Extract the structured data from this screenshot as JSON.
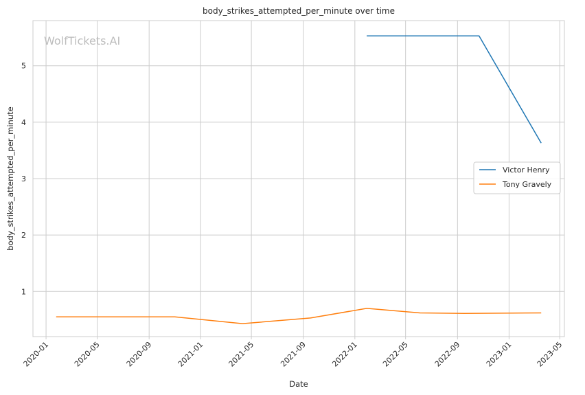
{
  "chart_data": {
    "type": "line",
    "title": "body_strikes_attempted_per_minute over time",
    "xlabel": "Date",
    "ylabel": "body_strikes_attempted_per_minute",
    "watermark": "WolfTickets.AI",
    "x_ticks": [
      "2020-01",
      "2020-05",
      "2020-09",
      "2021-01",
      "2021-05",
      "2021-09",
      "2022-01",
      "2022-05",
      "2022-09",
      "2023-01",
      "2023-05"
    ],
    "y_ticks": [
      1,
      2,
      3,
      4,
      5
    ],
    "xlim": [
      "2019-12-01",
      "2023-05-12"
    ],
    "ylim": [
      0.2,
      5.8
    ],
    "grid": true,
    "legend_position": "center-right",
    "series": [
      {
        "name": "Victor Henry",
        "color": "#1f77b4",
        "points": [
          {
            "x": "2022-01-29",
            "y": 5.53
          },
          {
            "x": "2022-10-22",
            "y": 5.53
          },
          {
            "x": "2023-03-18",
            "y": 3.63
          }
        ]
      },
      {
        "name": "Tony Gravely",
        "color": "#ff7f0e",
        "points": [
          {
            "x": "2020-01-25",
            "y": 0.55
          },
          {
            "x": "2020-11-01",
            "y": 0.55
          },
          {
            "x": "2021-04-10",
            "y": 0.43
          },
          {
            "x": "2021-09-18",
            "y": 0.53
          },
          {
            "x": "2022-01-29",
            "y": 0.7
          },
          {
            "x": "2022-06-04",
            "y": 0.62
          },
          {
            "x": "2022-09-17",
            "y": 0.61
          },
          {
            "x": "2023-03-18",
            "y": 0.62
          }
        ]
      }
    ]
  }
}
